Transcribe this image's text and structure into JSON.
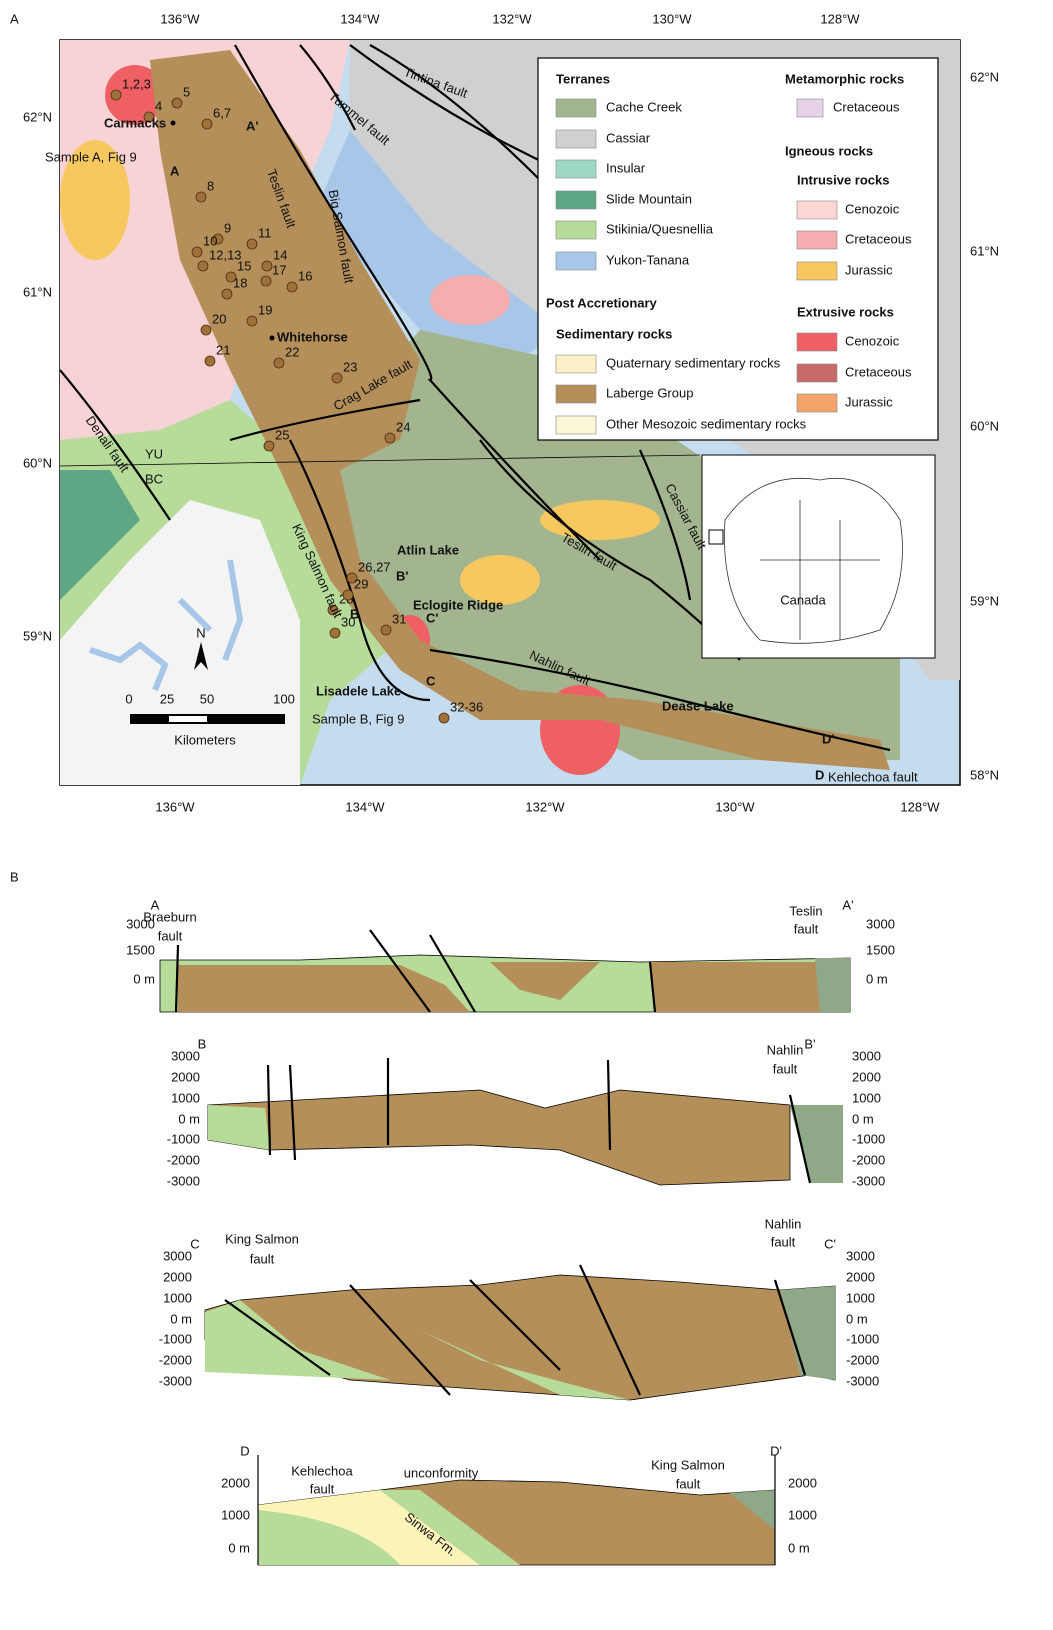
{
  "panel_a": {
    "label": "A",
    "lon_labels_top": [
      "136°W",
      "134°W",
      "132°W",
      "130°W",
      "128°W"
    ],
    "lon_labels_bottom": [
      "136°W",
      "134°W",
      "132°W",
      "130°W",
      "128°W"
    ],
    "lat_labels_left": [
      "62°N",
      "61°N",
      "60°N",
      "59°N"
    ],
    "lat_labels_right": [
      "62°N",
      "61°N",
      "60°N",
      "59°N",
      "58°N"
    ],
    "legend": {
      "terranes": {
        "title": "Terranes",
        "items": [
          "Cache Creek",
          "Cassiar",
          "Insular",
          "Slide Mountain",
          "Stikinia/Quesnellia",
          "Yukon-Tanana"
        ]
      },
      "post_accretionary": {
        "title": "Post Accretionary",
        "sedimentary": {
          "title": "Sedimentary rocks",
          "items": [
            "Quaternary sedimentary rocks",
            "Laberge Group",
            "Other Mesozoic sedimentary rocks"
          ]
        }
      },
      "metamorphic": {
        "title": "Metamorphic rocks",
        "items": [
          "Cretaceous"
        ]
      },
      "igneous": {
        "title": "Igneous rocks",
        "intrusive": {
          "title": "Intrusive rocks",
          "items": [
            "Cenozoic",
            "Cretaceous",
            "Jurassic"
          ]
        },
        "extrusive": {
          "title": "Extrusive rocks",
          "items": [
            "Cenozoic",
            "Cretaceous",
            "Jurassic"
          ]
        }
      }
    },
    "places": [
      "Carmacks",
      "Whitehorse",
      "Atlin Lake",
      "Eclogite Ridge",
      "Lisadele Lake",
      "Dease Lake"
    ],
    "sample_notes": [
      "Sample A, Fig 9",
      "Sample B, Fig 9"
    ],
    "samples": [
      "1,2,3",
      "4",
      "5",
      "6,7",
      "8",
      "9",
      "10",
      "11",
      "12,13",
      "14",
      "15",
      "16",
      "17",
      "18",
      "19",
      "20",
      "21",
      "22",
      "23",
      "24",
      "25",
      "26,27",
      "28",
      "29",
      "30",
      "31",
      "32-36"
    ],
    "section_ends": [
      "A",
      "A'",
      "B",
      "B'",
      "C",
      "C'",
      "D",
      "D'"
    ],
    "faults": [
      "Tintina fault",
      "Tummel fault",
      "Teslin fault",
      "Big Salmon fault",
      "Crag Lake fault",
      "Denali fault",
      "King Salmon fault",
      "Cassiar fault",
      "Teslin fault",
      "Nahlin fault",
      "Kehlechoa fault"
    ],
    "border": [
      "YU",
      "BC"
    ],
    "scale": {
      "ticks": [
        "0",
        "25",
        "50",
        "100"
      ],
      "unit": "Kilometers",
      "north": "N"
    },
    "inset": "Canada"
  },
  "panel_b": {
    "label": "B",
    "sections": [
      {
        "start": "A",
        "end": "A'",
        "left_ticks": [
          "3000",
          "1500",
          "0 m"
        ],
        "right_ticks": [
          "3000",
          "1500",
          "0 m"
        ],
        "faults": [
          {
            "label": [
              "Braeburn",
              "fault"
            ]
          },
          {
            "label": [
              "Teslin",
              "fault"
            ]
          }
        ]
      },
      {
        "start": "B",
        "end": "B'",
        "left_ticks": [
          "3000",
          "2000",
          "1000",
          "0 m",
          "-1000",
          "-2000",
          "-3000"
        ],
        "right_ticks": [
          "3000",
          "2000",
          "1000",
          "0 m",
          "-1000",
          "-2000",
          "-3000"
        ],
        "faults": [
          {
            "label": [
              "Nahlin",
              "fault"
            ]
          }
        ]
      },
      {
        "start": "C",
        "end": "C'",
        "left_ticks": [
          "3000",
          "2000",
          "1000",
          "0 m",
          "-1000",
          "-2000",
          "-3000"
        ],
        "right_ticks": [
          "3000",
          "2000",
          "1000",
          "0 m",
          "-1000",
          "-2000",
          "-3000"
        ],
        "faults": [
          {
            "label": [
              "King Salmon",
              "fault"
            ]
          },
          {
            "label": [
              "Nahlin",
              "fault"
            ]
          }
        ]
      },
      {
        "start": "D",
        "end": "D'",
        "left_ticks": [
          "2000",
          "1000",
          "0 m"
        ],
        "right_ticks": [
          "2000",
          "1000",
          "0 m"
        ],
        "faults": [
          {
            "label": [
              "Kehlechoa",
              "fault"
            ]
          },
          {
            "label": [
              "King Salmon",
              "fault"
            ]
          }
        ],
        "notes": [
          "unconformity",
          "Sinwa Fm."
        ]
      }
    ]
  }
}
